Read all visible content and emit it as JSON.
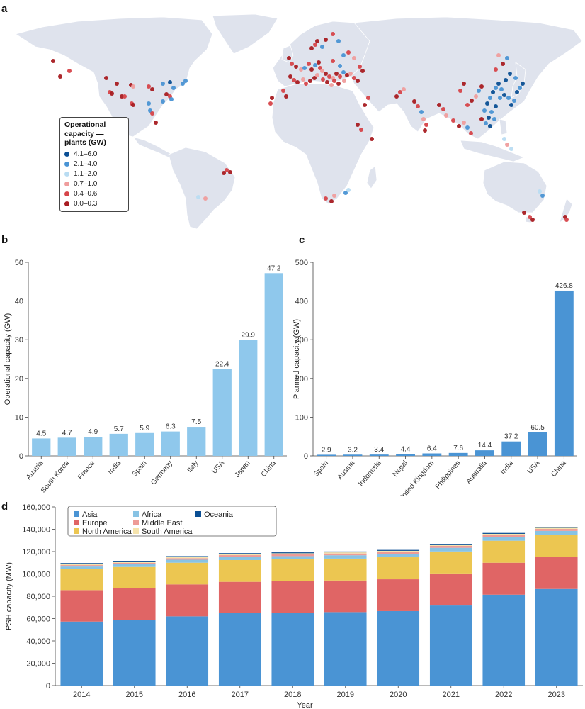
{
  "panels": {
    "a": "a",
    "b": "b",
    "c": "c",
    "d": "d"
  },
  "map": {
    "legend_title": "Operational capacity — plants (GW)",
    "legend_title_lines": [
      "Operational",
      "capacity —",
      "plants (GW)"
    ],
    "legend_items": [
      {
        "label": "4.1–6.0",
        "color": "#0b4f94"
      },
      {
        "label": "2.1–4.0",
        "color": "#4a94d4"
      },
      {
        "label": "1.1–2.0",
        "color": "#b9dcf2"
      },
      {
        "label": "0.7–1.0",
        "color": "#ef9d9d"
      },
      {
        "label": "0.4–0.6",
        "color": "#d6454a"
      },
      {
        "label": "0.0–0.3",
        "color": "#a81c22"
      }
    ],
    "land_color": "#dfe3ed",
    "border_color": "#ffffff"
  },
  "chart_data": [
    {
      "id": "b",
      "type": "bar",
      "categories": [
        "Austria",
        "South Korea",
        "France",
        "India",
        "Spain",
        "Germany",
        "Italy",
        "USA",
        "Japan",
        "China"
      ],
      "values": [
        4.5,
        4.7,
        4.9,
        5.7,
        5.9,
        6.3,
        7.5,
        22.4,
        29.9,
        47.2
      ],
      "value_labels": [
        "4.5",
        "4.7",
        "4.9",
        "5.7",
        "5.9",
        "6.3",
        "7.5",
        "22.4",
        "29.9",
        "47.2"
      ],
      "ylabel": "Operational capacity (GW)",
      "ylim": [
        0,
        50
      ],
      "yticks": [
        0,
        10,
        20,
        30,
        40,
        50
      ],
      "ytick_labels": [
        "0",
        "10",
        "20",
        "30",
        "40",
        "50"
      ],
      "color": "#8fc8ec",
      "grid": false
    },
    {
      "id": "c",
      "type": "bar",
      "categories": [
        "Spain",
        "Austria",
        "Indonesia",
        "Nepal",
        "United Kingdom",
        "Philippines",
        "Australia",
        "India",
        "USA",
        "China"
      ],
      "values": [
        2.9,
        3.2,
        3.4,
        4.4,
        6.4,
        7.6,
        14.4,
        37.2,
        60.5,
        426.8
      ],
      "value_labels": [
        "2.9",
        "3.2",
        "3.4",
        "4.4",
        "6.4",
        "7.6",
        "14.4",
        "37.2",
        "60.5",
        "426.8"
      ],
      "ylabel": "Planned capacity (GW)",
      "ylim": [
        0,
        500
      ],
      "yticks": [
        0,
        100,
        200,
        300,
        400,
        500
      ],
      "ytick_labels": [
        "0",
        "100",
        "200",
        "300",
        "400",
        "500"
      ],
      "color": "#4a94d4",
      "grid": false
    },
    {
      "id": "d",
      "type": "bar",
      "stacked": true,
      "categories": [
        "2014",
        "2015",
        "2016",
        "2017",
        "2018",
        "2019",
        "2020",
        "2021",
        "2022",
        "2023"
      ],
      "xlabel": "Year",
      "ylabel": "PSH capacity (MW)",
      "ylim": [
        0,
        160000
      ],
      "yticks": [
        0,
        20000,
        40000,
        60000,
        80000,
        100000,
        120000,
        140000,
        160000
      ],
      "ytick_labels": [
        "0",
        "20,000",
        "40,000",
        "60,000",
        "80,000",
        "100,000",
        "120,000",
        "140,000",
        "160,000"
      ],
      "legend_placement": "top-left",
      "grid": false,
      "series": [
        {
          "name": "Asia",
          "color": "#4a94d4",
          "values": [
            57300,
            58500,
            62000,
            64800,
            65000,
            65800,
            66700,
            71700,
            81400,
            86500
          ]
        },
        {
          "name": "Europe",
          "color": "#e06565",
          "values": [
            28200,
            28500,
            28600,
            28100,
            28400,
            28300,
            28500,
            28700,
            28600,
            28700
          ]
        },
        {
          "name": "North America",
          "color": "#ecc651",
          "values": [
            19000,
            19200,
            19400,
            19500,
            19600,
            19600,
            19700,
            19700,
            19700,
            19700
          ]
        },
        {
          "name": "Africa",
          "color": "#88c3e4",
          "values": [
            2100,
            2400,
            2700,
            2900,
            2900,
            3000,
            3200,
            3300,
            3400,
            3600
          ]
        },
        {
          "name": "Middle East",
          "color": "#ee9b96",
          "values": [
            1300,
            1300,
            1400,
            1500,
            1600,
            1600,
            1600,
            1700,
            1800,
            1800
          ]
        },
        {
          "name": "South America",
          "color": "#f6e4ad",
          "values": [
            1000,
            1000,
            1000,
            1000,
            1000,
            1000,
            1000,
            1000,
            1000,
            1000
          ]
        },
        {
          "name": "Oceania",
          "color": "#0b4f94",
          "values": [
            800,
            800,
            800,
            800,
            800,
            800,
            800,
            800,
            800,
            800
          ]
        }
      ]
    }
  ]
}
